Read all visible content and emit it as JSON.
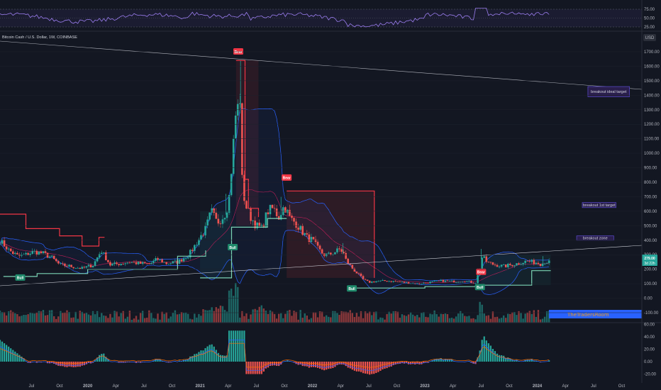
{
  "title": "Bitcoin Cash / U.S. Dollar, 1W, COINBASE",
  "currency_badge": "USD",
  "colors": {
    "bg": "#131722",
    "up": "#26a69a",
    "down": "#ef5350",
    "bb": "#2962ff",
    "st_bear": "#f23645",
    "st_bull": "#7bd3b4",
    "trend": "#b2b5be",
    "zone_fill": "#2a1f4d",
    "zone_border": "#5b4bd1",
    "price_tag": "#26a69a",
    "watermark_bar": "#2962ff"
  },
  "price_tag": {
    "value": "279.00",
    "sub": "3d 22h"
  },
  "watermark": "TheTradersRoom",
  "zones": [
    {
      "label": "breakout ideal target",
      "y0": 1390,
      "y1": 1460,
      "x0": 2024.45,
      "x1": 2024.82
    },
    {
      "label": "breakout 1st target",
      "y0": 625,
      "y1": 660,
      "x0": 2024.4,
      "x1": 2024.7
    },
    {
      "label": "breakout zone",
      "y0": 400,
      "y1": 430,
      "x0": 2024.35,
      "x1": 2024.68
    }
  ],
  "signals": [
    {
      "label": "Bear",
      "type": "bear",
      "x": 2021.34,
      "y": 1700
    },
    {
      "label": "Bear",
      "type": "bear",
      "x": 2021.77,
      "y": 830
    },
    {
      "label": "Bear",
      "type": "bear",
      "x": 2023.5,
      "y": 180
    },
    {
      "label": "Bull",
      "type": "bull",
      "x": 2019.4,
      "y": 140
    },
    {
      "label": "Bull",
      "type": "bull",
      "x": 2021.29,
      "y": 350
    },
    {
      "label": "Bull",
      "type": "bull",
      "x": 2022.35,
      "y": 65
    },
    {
      "label": "Bull",
      "type": "bull",
      "x": 2023.49,
      "y": 75
    }
  ],
  "chart_data": [
    {
      "type": "candlestick",
      "title": "Bitcoin Cash / U.S. Dollar, 1W, COINBASE",
      "xlabel": "",
      "ylabel": "",
      "ylim": [
        -120,
        1800
      ],
      "y_ticks": [
        -100,
        0,
        100,
        200,
        300,
        400,
        500,
        600,
        700,
        800,
        900,
        1000,
        1100,
        1200,
        1300,
        1400,
        1500,
        1600,
        1700
      ],
      "y_tick_labels": [
        "-100.00",
        "0.00",
        "100.00",
        "200.00",
        "300.00",
        "400.00",
        "500.00",
        "600.00",
        "700.00",
        "800.00",
        "900.00",
        "1000.00",
        "1100.00",
        "1200.00",
        "1300.00",
        "1400.00",
        "1500.00",
        "1600.00",
        "1700.00"
      ],
      "x_ticks": [
        {
          "label": "Jul",
          "x": 2019.5
        },
        {
          "label": "Oct",
          "x": 2019.75
        },
        {
          "label": "2020",
          "x": 2020.0
        },
        {
          "label": "Apr",
          "x": 2020.25
        },
        {
          "label": "Jul",
          "x": 2020.5
        },
        {
          "label": "Oct",
          "x": 2020.75
        },
        {
          "label": "2021",
          "x": 2021.0
        },
        {
          "label": "Apr",
          "x": 2021.25
        },
        {
          "label": "Jul",
          "x": 2021.5
        },
        {
          "label": "Oct",
          "x": 2021.75
        },
        {
          "label": "2022",
          "x": 2022.0
        },
        {
          "label": "Apr",
          "x": 2022.25
        },
        {
          "label": "Jul",
          "x": 2022.5
        },
        {
          "label": "Oct",
          "x": 2022.75
        },
        {
          "label": "2023",
          "x": 2023.0
        },
        {
          "label": "Apr",
          "x": 2023.25
        },
        {
          "label": "Jul",
          "x": 2023.5
        },
        {
          "label": "Oct",
          "x": 2023.75
        },
        {
          "label": "2024",
          "x": 2024.0
        },
        {
          "label": "Apr",
          "x": 2024.25
        },
        {
          "label": "Jul",
          "x": 2024.5
        },
        {
          "label": "Oct",
          "x": 2024.75
        }
      ],
      "xlim": [
        2019.22,
        2024.93
      ],
      "close_anchors": [
        [
          2019.22,
          400
        ],
        [
          2019.3,
          330
        ],
        [
          2019.38,
          290
        ],
        [
          2019.45,
          300
        ],
        [
          2019.52,
          320
        ],
        [
          2019.6,
          310
        ],
        [
          2019.68,
          280
        ],
        [
          2019.75,
          230
        ],
        [
          2019.85,
          220
        ],
        [
          2019.95,
          205
        ],
        [
          2020.05,
          230
        ],
        [
          2020.12,
          330
        ],
        [
          2020.2,
          230
        ],
        [
          2020.3,
          240
        ],
        [
          2020.38,
          250
        ],
        [
          2020.45,
          240
        ],
        [
          2020.55,
          235
        ],
        [
          2020.62,
          270
        ],
        [
          2020.7,
          240
        ],
        [
          2020.8,
          250
        ],
        [
          2020.9,
          300
        ],
        [
          2021.0,
          420
        ],
        [
          2021.05,
          480
        ],
        [
          2021.1,
          600
        ],
        [
          2021.15,
          520
        ],
        [
          2021.2,
          560
        ],
        [
          2021.25,
          620
        ],
        [
          2021.3,
          1100
        ],
        [
          2021.33,
          1400
        ],
        [
          2021.36,
          900
        ],
        [
          2021.4,
          650
        ],
        [
          2021.45,
          560
        ],
        [
          2021.5,
          500
        ],
        [
          2021.55,
          480
        ],
        [
          2021.6,
          600
        ],
        [
          2021.65,
          620
        ],
        [
          2021.7,
          560
        ],
        [
          2021.75,
          640
        ],
        [
          2021.8,
          550
        ],
        [
          2021.85,
          520
        ],
        [
          2021.9,
          470
        ],
        [
          2021.95,
          420
        ],
        [
          2022.0,
          400
        ],
        [
          2022.05,
          340
        ],
        [
          2022.1,
          300
        ],
        [
          2022.15,
          300
        ],
        [
          2022.2,
          320
        ],
        [
          2022.25,
          340
        ],
        [
          2022.3,
          260
        ],
        [
          2022.35,
          210
        ],
        [
          2022.4,
          170
        ],
        [
          2022.45,
          130
        ],
        [
          2022.5,
          110
        ],
        [
          2022.55,
          115
        ],
        [
          2022.65,
          120
        ],
        [
          2022.75,
          115
        ],
        [
          2022.85,
          105
        ],
        [
          2022.95,
          100
        ],
        [
          2023.05,
          110
        ],
        [
          2023.15,
          120
        ],
        [
          2023.25,
          115
        ],
        [
          2023.35,
          120
        ],
        [
          2023.45,
          105
        ],
        [
          2023.48,
          180
        ],
        [
          2023.52,
          280
        ],
        [
          2023.55,
          250
        ],
        [
          2023.6,
          235
        ],
        [
          2023.7,
          220
        ],
        [
          2023.8,
          235
        ],
        [
          2023.9,
          255
        ],
        [
          2024.0,
          245
        ],
        [
          2024.05,
          230
        ],
        [
          2024.12,
          279
        ]
      ],
      "peaks": [
        [
          2021.36,
          1640
        ],
        [
          2021.23,
          720
        ],
        [
          2021.72,
          700
        ],
        [
          2022.27,
          380
        ],
        [
          2023.5,
          340
        ],
        [
          2024.05,
          290
        ]
      ]
    },
    {
      "type": "line",
      "title": "",
      "y_ticks": [
        25,
        50,
        75
      ],
      "y_tick_labels": [
        "25.00",
        "50.00",
        "75.00"
      ],
      "ylim": [
        20,
        80
      ]
    },
    {
      "type": "histogram",
      "title": "",
      "y_ticks": [
        -20,
        0,
        20,
        40,
        60
      ],
      "y_tick_labels": [
        "-20.00",
        "0.00",
        "20.00",
        "40.00",
        "60.00"
      ],
      "ylim": [
        -30,
        60
      ]
    }
  ]
}
